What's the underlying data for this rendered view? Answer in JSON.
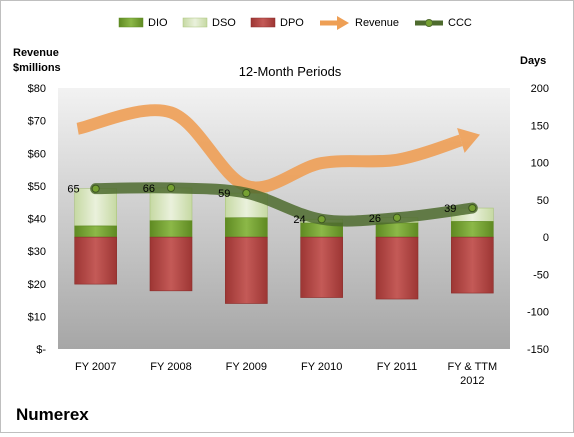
{
  "company": "Numerex",
  "chart_data": {
    "type": "bar",
    "title": "12-Month Periods",
    "categories": [
      "FY 2007",
      "FY 2008",
      "FY 2009",
      "FY 2010",
      "FY 2011",
      "FY & TTM 2012"
    ],
    "series": [
      {
        "name": "DIO",
        "kind": "stacked-bar",
        "values": [
          15,
          22,
          26,
          19,
          19,
          21
        ]
      },
      {
        "name": "DSO",
        "kind": "stacked-bar",
        "values": [
          50,
          44,
          33,
          5,
          7,
          18
        ]
      },
      {
        "name": "DPO",
        "kind": "stacked-bar-negative",
        "values": [
          -63,
          -72,
          -89,
          -81,
          -83,
          -75
        ]
      },
      {
        "name": "Revenue",
        "kind": "line-arrow",
        "axis": "left",
        "values": [
          67.5,
          72.5,
          50,
          57,
          58,
          65
        ]
      },
      {
        "name": "CCC",
        "kind": "line",
        "axis": "right",
        "values": [
          65,
          66,
          59,
          24,
          26,
          39
        ]
      }
    ],
    "data_labels": [
      "65",
      "66",
      "59",
      "24",
      "26",
      "39"
    ],
    "left_axis": {
      "label": "Revenue $millions",
      "ylim": [
        0,
        80
      ],
      "ticks": [
        "$-",
        "$10",
        "$20",
        "$30",
        "$40",
        "$50",
        "$60",
        "$70",
        "$80"
      ]
    },
    "right_axis": {
      "label": "Days",
      "ylim": [
        -150,
        200
      ],
      "ticks": [
        "-150",
        "-100",
        "-50",
        "0",
        "50",
        "100",
        "150",
        "200"
      ]
    },
    "legend": {
      "position": "top",
      "entries": [
        "DIO",
        "DSO",
        "DPO",
        "Revenue",
        "CCC"
      ]
    },
    "grid": false,
    "colors": {
      "DIO": "#76a132",
      "DSO": "#d7e4bd",
      "DPO": "#b84c4a",
      "Revenue": "#ee9f55",
      "CCC": "#4e6b2e",
      "plot_top": "#f2f2f2",
      "plot_bottom": "#a6a6a6"
    }
  }
}
